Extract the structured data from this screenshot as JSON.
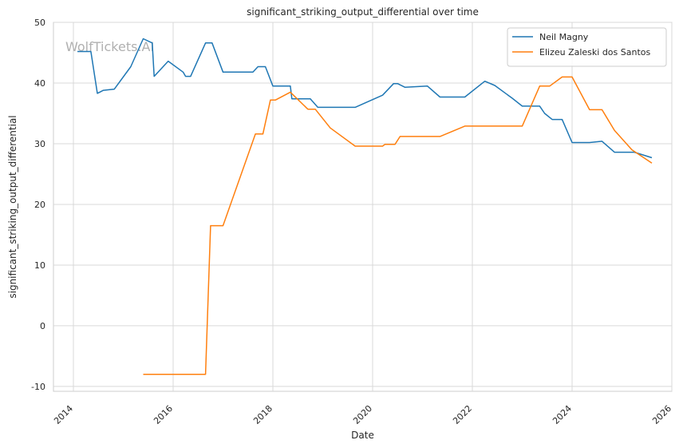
{
  "chart_data": {
    "type": "line",
    "title": "significant_striking_output_differential over time",
    "xlabel": "Date",
    "ylabel": "significant_striking_output_differential",
    "x_range": [
      2013.6,
      2026.0
    ],
    "ylim": [
      -10.8,
      50
    ],
    "x_ticks": [
      2014,
      2016,
      2018,
      2020,
      2022,
      2024,
      2026
    ],
    "y_ticks": [
      -10,
      0,
      10,
      20,
      30,
      40,
      50
    ],
    "grid": true,
    "legend_position": "top-right",
    "watermark": "WolfTickets.AI",
    "series": [
      {
        "name": "Neil Magny",
        "color": "#1f77b4",
        "points": [
          [
            2014.08,
            45.2
          ],
          [
            2014.35,
            45.2
          ],
          [
            2014.48,
            38.3
          ],
          [
            2014.6,
            38.8
          ],
          [
            2014.82,
            39.0
          ],
          [
            2015.15,
            42.7
          ],
          [
            2015.4,
            47.3
          ],
          [
            2015.58,
            46.6
          ],
          [
            2015.62,
            41.1
          ],
          [
            2015.9,
            43.6
          ],
          [
            2016.2,
            41.8
          ],
          [
            2016.25,
            41.1
          ],
          [
            2016.35,
            41.1
          ],
          [
            2016.65,
            46.6
          ],
          [
            2016.78,
            46.6
          ],
          [
            2017.0,
            41.8
          ],
          [
            2017.6,
            41.8
          ],
          [
            2017.7,
            42.7
          ],
          [
            2017.85,
            42.7
          ],
          [
            2018.0,
            39.5
          ],
          [
            2018.35,
            39.5
          ],
          [
            2018.38,
            37.4
          ],
          [
            2018.75,
            37.4
          ],
          [
            2018.9,
            36.0
          ],
          [
            2019.65,
            36.0
          ],
          [
            2020.2,
            38.0
          ],
          [
            2020.42,
            39.9
          ],
          [
            2020.5,
            39.9
          ],
          [
            2020.65,
            39.3
          ],
          [
            2021.1,
            39.5
          ],
          [
            2021.35,
            37.7
          ],
          [
            2021.85,
            37.7
          ],
          [
            2022.25,
            40.3
          ],
          [
            2022.45,
            39.6
          ],
          [
            2022.8,
            37.5
          ],
          [
            2023.0,
            36.2
          ],
          [
            2023.35,
            36.2
          ],
          [
            2023.45,
            35.0
          ],
          [
            2023.6,
            34.0
          ],
          [
            2023.8,
            34.0
          ],
          [
            2024.0,
            30.2
          ],
          [
            2024.35,
            30.2
          ],
          [
            2024.6,
            30.4
          ],
          [
            2024.85,
            28.6
          ],
          [
            2025.25,
            28.6
          ],
          [
            2025.6,
            27.7
          ]
        ]
      },
      {
        "name": "Elizeu Zaleski dos Santos",
        "color": "#ff7f0e",
        "points": [
          [
            2015.4,
            -8.0
          ],
          [
            2016.65,
            -8.0
          ],
          [
            2016.75,
            16.5
          ],
          [
            2017.0,
            16.5
          ],
          [
            2017.65,
            31.6
          ],
          [
            2017.8,
            31.6
          ],
          [
            2017.95,
            37.2
          ],
          [
            2018.05,
            37.2
          ],
          [
            2018.35,
            38.5
          ],
          [
            2018.7,
            35.7
          ],
          [
            2018.85,
            35.7
          ],
          [
            2019.15,
            32.6
          ],
          [
            2019.65,
            29.6
          ],
          [
            2020.2,
            29.6
          ],
          [
            2020.25,
            29.9
          ],
          [
            2020.45,
            29.9
          ],
          [
            2020.55,
            31.2
          ],
          [
            2021.35,
            31.2
          ],
          [
            2021.85,
            32.9
          ],
          [
            2023.0,
            32.9
          ],
          [
            2023.35,
            39.5
          ],
          [
            2023.55,
            39.5
          ],
          [
            2023.8,
            41.0
          ],
          [
            2024.0,
            41.0
          ],
          [
            2024.35,
            35.6
          ],
          [
            2024.6,
            35.6
          ],
          [
            2024.85,
            32.2
          ],
          [
            2025.2,
            29.0
          ],
          [
            2025.6,
            26.8
          ]
        ]
      }
    ]
  }
}
